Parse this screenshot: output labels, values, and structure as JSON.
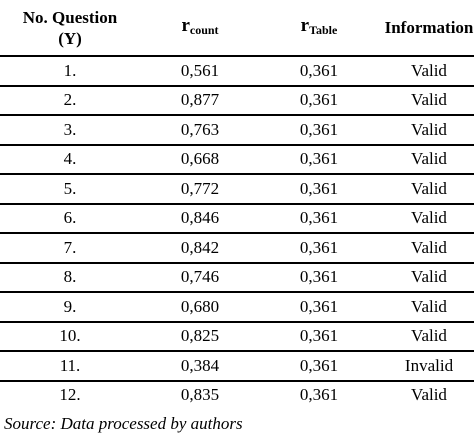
{
  "table": {
    "header": [
      {
        "lines": [
          "No.  Question",
          "(Y)"
        ]
      },
      {
        "main": "r",
        "sub": "count"
      },
      {
        "main": "r",
        "sub": "Table"
      },
      {
        "lines": [
          "Information"
        ]
      }
    ],
    "rows": [
      [
        "1.",
        "0,561",
        "0,361",
        "Valid"
      ],
      [
        "2.",
        "0,877",
        "0,361",
        "Valid"
      ],
      [
        "3.",
        "0,763",
        "0,361",
        "Valid"
      ],
      [
        "4.",
        "0,668",
        "0,361",
        "Valid"
      ],
      [
        "5.",
        "0,772",
        "0,361",
        "Valid"
      ],
      [
        "6.",
        "0,846",
        "0,361",
        "Valid"
      ],
      [
        "7.",
        "0,842",
        "0,361",
        "Valid"
      ],
      [
        "8.",
        "0,746",
        "0,361",
        "Valid"
      ],
      [
        "9.",
        "0,680",
        "0,361",
        "Valid"
      ],
      [
        "10.",
        "0,825",
        "0,361",
        "Valid"
      ],
      [
        "11.",
        "0,384",
        "0,361",
        "Invalid"
      ],
      [
        "12.",
        "0,835",
        "0,361",
        "Valid"
      ]
    ]
  },
  "source": "Source: Data processed by authors"
}
